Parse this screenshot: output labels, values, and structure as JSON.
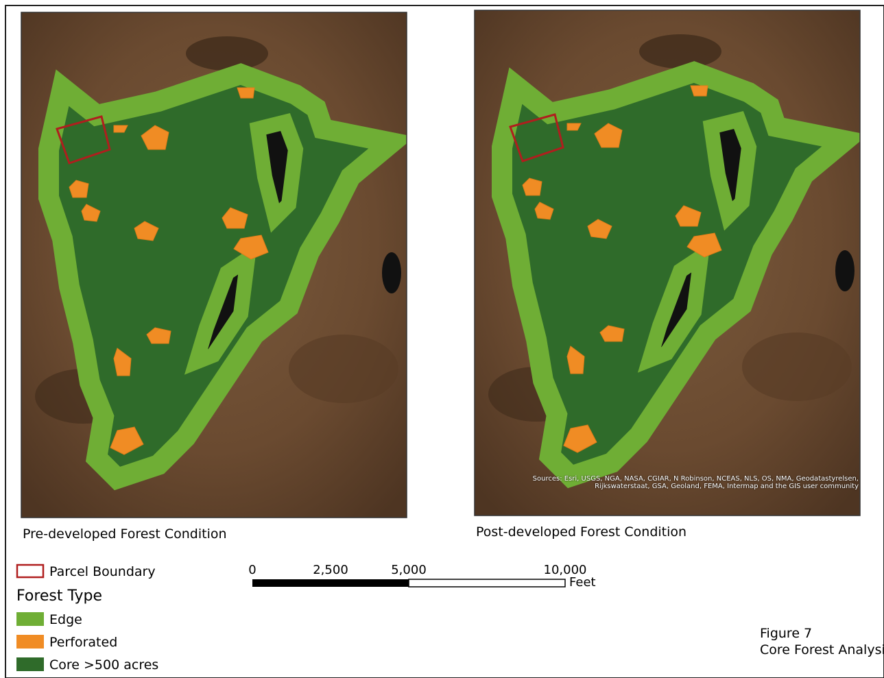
{
  "maps": [
    {
      "caption": "Pre-developed Forest Condition"
    },
    {
      "caption": "Post-developed Forest Condition",
      "attribution": "Sources: Esri, USGS, NGA, NASA, CGIAR, N Robinson, NCEAS, NLS, OS, NMA, Geodatastyrelsen, Rijkswaterstaat, GSA, Geoland, FEMA, Intermap and the GIS user community"
    }
  ],
  "legend": {
    "parcel": "Parcel Boundary",
    "heading": "Forest Type",
    "items": [
      {
        "label": "Edge",
        "color": "#6fae35"
      },
      {
        "label": "Perforated",
        "color": "#f08c24"
      },
      {
        "label": "Core >500 acres",
        "color": "#2f6b2a"
      }
    ]
  },
  "scale_bar": {
    "labels": [
      "0",
      "2,500",
      "5,000",
      "10,000"
    ],
    "unit": "Feet"
  },
  "figure": {
    "number": "Figure 7",
    "title": "Core Forest Analysis"
  }
}
